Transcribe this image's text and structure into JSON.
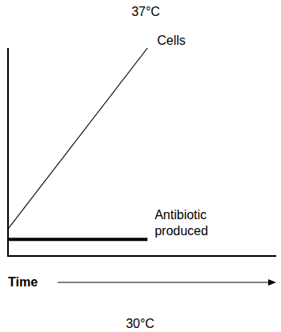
{
  "chart_data": {
    "type": "line",
    "title": "37°C",
    "x_label": "Time",
    "annotations": [
      "30°C"
    ],
    "x": [
      0,
      52
    ],
    "series": [
      {
        "name": "Cells",
        "color": "#000000",
        "values": [
          13,
          100
        ]
      },
      {
        "name": "Antibiotic produced",
        "color": "#000000",
        "values": [
          8,
          8
        ]
      }
    ],
    "xlim": [
      0,
      100
    ],
    "ylim": [
      0,
      100
    ],
    "tick_labels": false,
    "grid": false
  }
}
